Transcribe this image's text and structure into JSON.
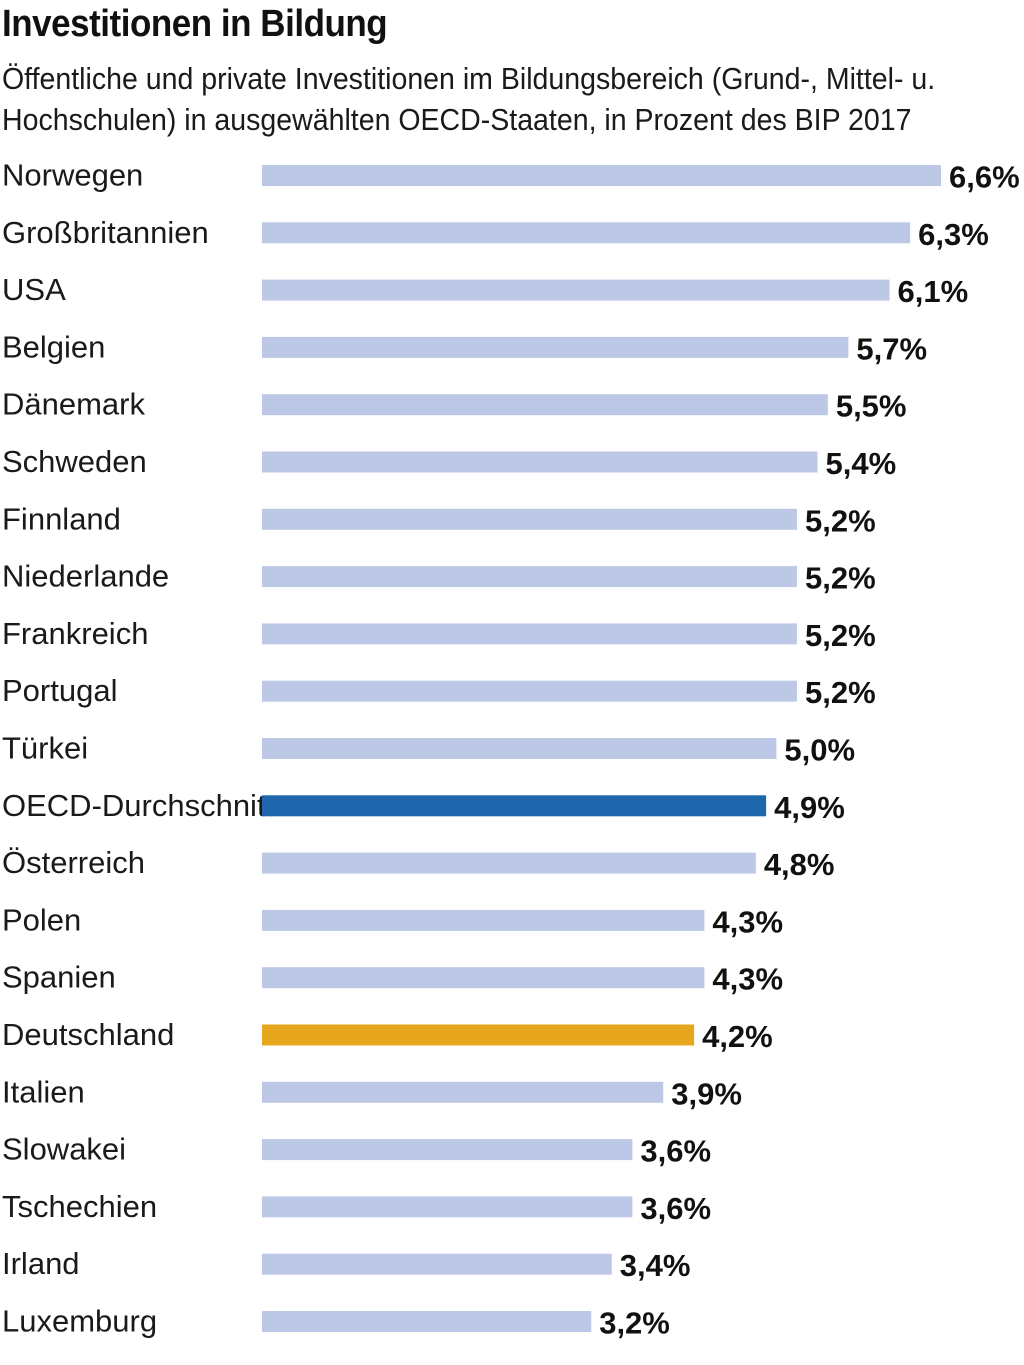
{
  "chart_data": {
    "type": "bar",
    "orientation": "horizontal",
    "title": "Investitionen in Bildung",
    "subtitle": "Öffentliche und private Investitionen im Bildungsbereich (Grund-, Mittel- u. Hochschulen) in ausgewählten OECD-Staaten, in Prozent des BIP 2017",
    "categories": [
      "Norwegen",
      "Großbritannien",
      "USA",
      "Belgien",
      "Dänemark",
      "Schweden",
      "Finnland",
      "Niederlande",
      "Frankreich",
      "Portugal",
      "Türkei",
      "OECD-Durchschnitt",
      "Österreich",
      "Polen",
      "Spanien",
      "Deutschland",
      "Italien",
      "Slowakei",
      "Tschechien",
      "Irland",
      "Luxemburg"
    ],
    "values": [
      6.6,
      6.3,
      6.1,
      5.7,
      5.5,
      5.4,
      5.2,
      5.2,
      5.2,
      5.2,
      5.0,
      4.9,
      4.8,
      4.3,
      4.3,
      4.2,
      3.9,
      3.6,
      3.6,
      3.4,
      3.2
    ],
    "value_labels": [
      "6,6%",
      "6,3%",
      "6,1%",
      "5,7%",
      "5,5%",
      "5,4%",
      "5,2%",
      "5,2%",
      "5,2%",
      "5,2%",
      "5,0%",
      "4,9%",
      "4,8%",
      "4,3%",
      "4,3%",
      "4,2%",
      "3,9%",
      "3,6%",
      "3,6%",
      "3,4%",
      "3,2%"
    ],
    "xlim": [
      0,
      6.6
    ],
    "grid": false,
    "colors": {
      "default": "#bcc8e6",
      "OECD-Durchschnitt": "#1f67ad",
      "Deutschland": "#e6a61e"
    }
  }
}
